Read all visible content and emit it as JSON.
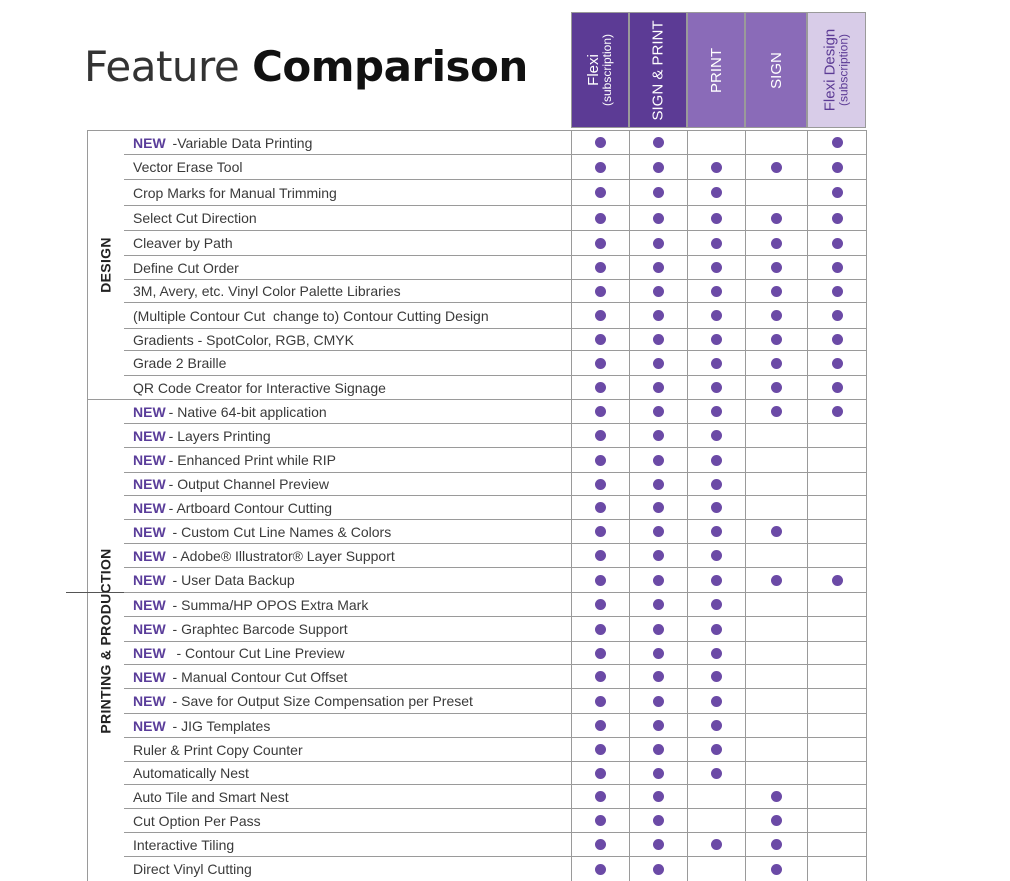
{
  "title": {
    "light": "Feature ",
    "bold": "Comparison"
  },
  "columns": [
    {
      "key": "flexi",
      "label": "Flexi",
      "sub": "(subscription)",
      "bg": "#5c3b95",
      "fg": "#ffffff"
    },
    {
      "key": "sign_print",
      "label": "SIGN & PRINT",
      "sub": "",
      "bg": "#5c3b95",
      "fg": "#ffffff"
    },
    {
      "key": "print",
      "label": "PRINT",
      "sub": "",
      "bg": "#8a6bb8",
      "fg": "#ffffff"
    },
    {
      "key": "sign",
      "label": "SIGN",
      "sub": "",
      "bg": "#8a6bb8",
      "fg": "#ffffff"
    },
    {
      "key": "flexi_design",
      "label": "Flexi Design",
      "sub": "(subscription)",
      "bg": "#d8cce8",
      "fg": "#5c3b95"
    }
  ],
  "categories": {
    "design": "DESIGN",
    "printing": "PRINTING & PRODUCTION"
  },
  "rows": [
    {
      "new": "NEW",
      "text": " -Variable Data Printing",
      "marks": [
        1,
        1,
        0,
        0,
        1
      ]
    },
    {
      "new": "",
      "text": "Vector Erase Tool",
      "marks": [
        1,
        1,
        1,
        1,
        1
      ]
    },
    {
      "new": "",
      "text": "Crop Marks for Manual Trimming",
      "marks": [
        1,
        1,
        1,
        0,
        1
      ]
    },
    {
      "new": "",
      "text": "Select Cut Direction",
      "marks": [
        1,
        1,
        1,
        1,
        1
      ]
    },
    {
      "new": "",
      "text": "Cleaver by Path",
      "marks": [
        1,
        1,
        1,
        1,
        1
      ]
    },
    {
      "new": "",
      "text": "Define Cut Order",
      "marks": [
        1,
        1,
        1,
        1,
        1
      ]
    },
    {
      "new": "",
      "text": "3M, Avery, etc. Vinyl Color Palette Libraries",
      "marks": [
        1,
        1,
        1,
        1,
        1
      ]
    },
    {
      "new": "",
      "text": "(Multiple Contour Cut  change to) Contour Cutting Design",
      "marks": [
        1,
        1,
        1,
        1,
        1
      ]
    },
    {
      "new": "",
      "text": "Gradients - SpotColor, RGB, CMYK",
      "marks": [
        1,
        1,
        1,
        1,
        1
      ]
    },
    {
      "new": "",
      "text": "Grade 2 Braille",
      "marks": [
        1,
        1,
        1,
        1,
        1
      ]
    },
    {
      "new": "",
      "text": "QR Code Creator for Interactive Signage",
      "marks": [
        1,
        1,
        1,
        1,
        1
      ]
    },
    {
      "new": "NEW",
      "text": "- Native 64-bit application",
      "marks": [
        1,
        1,
        1,
        1,
        1
      ]
    },
    {
      "new": "NEW",
      "text": "- Layers Printing",
      "marks": [
        1,
        1,
        1,
        0,
        0
      ]
    },
    {
      "new": "NEW",
      "text": "- Enhanced Print while RIP",
      "marks": [
        1,
        1,
        1,
        0,
        0
      ]
    },
    {
      "new": "NEW",
      "text": "- Output Channel Preview",
      "marks": [
        1,
        1,
        1,
        0,
        0
      ]
    },
    {
      "new": "NEW",
      "text": "- Artboard Contour Cutting",
      "marks": [
        1,
        1,
        1,
        0,
        0
      ]
    },
    {
      "new": "NEW",
      "text": " - Custom Cut Line Names & Colors",
      "marks": [
        1,
        1,
        1,
        1,
        0
      ]
    },
    {
      "new": "NEW",
      "text": " - Adobe® Illustrator® Layer Support",
      "marks": [
        1,
        1,
        1,
        0,
        0
      ]
    },
    {
      "new": "NEW",
      "text": " - User Data Backup",
      "marks": [
        1,
        1,
        1,
        1,
        1
      ]
    },
    {
      "new": "NEW",
      "text": " - Summa/HP OPOS Extra Mark",
      "marks": [
        1,
        1,
        1,
        0,
        0
      ]
    },
    {
      "new": "NEW",
      "text": " - Graphtec Barcode Support",
      "marks": [
        1,
        1,
        1,
        0,
        0
      ]
    },
    {
      "new": "NEW",
      "text": "  - Contour Cut Line Preview",
      "marks": [
        1,
        1,
        1,
        0,
        0
      ]
    },
    {
      "new": "NEW",
      "text": " - Manual Contour Cut Offset",
      "marks": [
        1,
        1,
        1,
        0,
        0
      ]
    },
    {
      "new": "NEW",
      "text": " - Save for Output Size Compensation per Preset",
      "marks": [
        1,
        1,
        1,
        0,
        0
      ]
    },
    {
      "new": "NEW",
      "text": " - JIG Templates",
      "marks": [
        1,
        1,
        1,
        0,
        0
      ]
    },
    {
      "new": "",
      "text": "Ruler & Print Copy Counter",
      "marks": [
        1,
        1,
        1,
        0,
        0
      ]
    },
    {
      "new": "",
      "text": "Automatically Nest",
      "marks": [
        1,
        1,
        1,
        0,
        0
      ]
    },
    {
      "new": "",
      "text": "Auto Tile and Smart Nest",
      "marks": [
        1,
        1,
        0,
        1,
        0
      ]
    },
    {
      "new": "",
      "text": "Cut Option Per Pass",
      "marks": [
        1,
        1,
        0,
        1,
        0
      ]
    },
    {
      "new": "",
      "text": "Interactive Tiling",
      "marks": [
        1,
        1,
        1,
        1,
        0
      ]
    },
    {
      "new": "",
      "text": "Direct Vinyl Cutting",
      "marks": [
        1,
        1,
        0,
        1,
        0
      ]
    }
  ]
}
